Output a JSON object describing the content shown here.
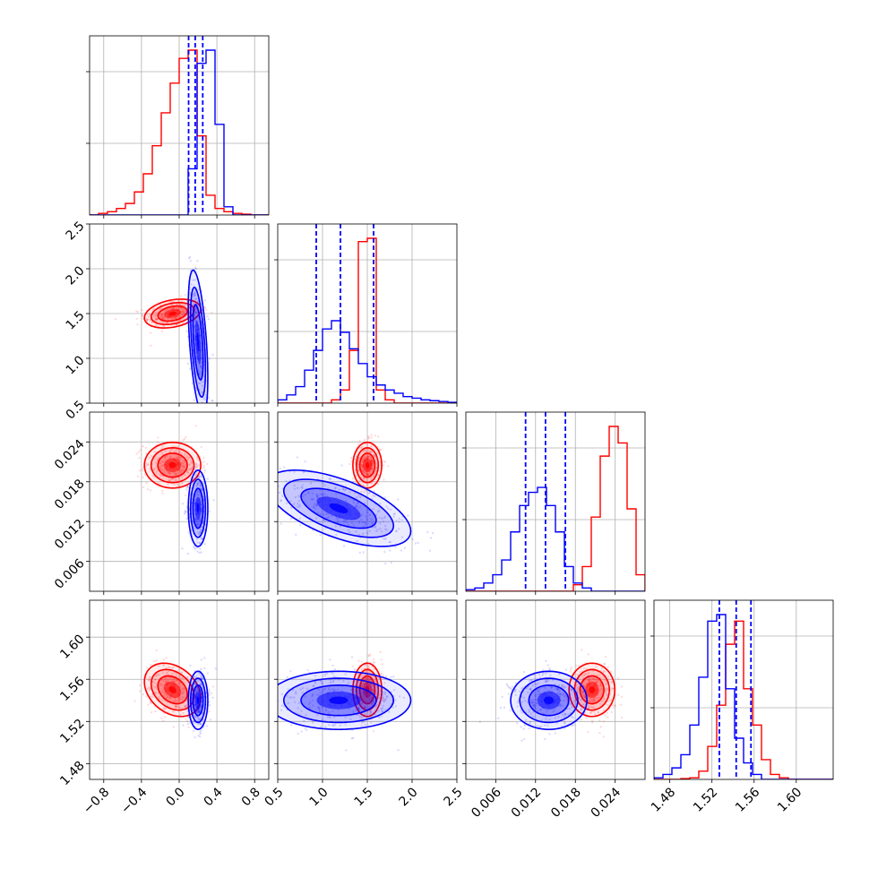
{
  "colors": {
    "red": "#ff0000",
    "blue": "#0000ff",
    "grid": "#b0b0b0",
    "axis": "#000000"
  },
  "chart_data": {
    "type": "corner",
    "grid": true,
    "params": [
      {
        "lim": [
          -0.95,
          0.95
        ],
        "ticks": [
          -0.8,
          -0.4,
          0.0,
          0.4,
          0.8
        ],
        "tick_labels": [
          "−0.8",
          "−0.4",
          "0.0",
          "0.4",
          "0.8"
        ]
      },
      {
        "lim": [
          0.5,
          2.5
        ],
        "ticks": [
          0.5,
          1.0,
          1.5,
          2.0,
          2.5
        ],
        "tick_labels": [
          "0.5",
          "1.0",
          "1.5",
          "2.0",
          "2.5"
        ]
      },
      {
        "lim": [
          0.0015,
          0.0285
        ],
        "ticks": [
          0.006,
          0.012,
          0.018,
          0.024
        ],
        "tick_labels": [
          "0.006",
          "0.012",
          "0.018",
          "0.024"
        ]
      },
      {
        "lim": [
          1.465,
          1.635
        ],
        "ticks": [
          1.48,
          1.52,
          1.56,
          1.6
        ],
        "tick_labels": [
          "1.48",
          "1.52",
          "1.56",
          "1.60"
        ]
      }
    ],
    "series": [
      {
        "color": "red",
        "mean": [
          -0.07,
          1.5,
          0.0205,
          1.55
        ],
        "sd": [
          0.13,
          0.07,
          0.0015,
          0.011
        ],
        "corr": [
          [
            0,
            1,
            0.3
          ],
          [
            0,
            2,
            0.0
          ],
          [
            0,
            3,
            -0.3
          ],
          [
            1,
            2,
            0.0
          ],
          [
            1,
            3,
            0.0
          ],
          [
            2,
            3,
            0.0
          ]
        ]
      },
      {
        "color": "blue",
        "mean": [
          0.2,
          1.18,
          0.014,
          1.54
        ],
        "sd": [
          0.045,
          0.35,
          0.0025,
          0.012
        ],
        "corr": [
          [
            0,
            1,
            -0.5
          ],
          [
            0,
            2,
            0.0
          ],
          [
            0,
            3,
            0.0
          ],
          [
            1,
            2,
            -0.6
          ],
          [
            1,
            3,
            0.0
          ],
          [
            2,
            3,
            0.0
          ]
        ]
      }
    ],
    "histograms": [
      {
        "red": {
          "start": -0.95,
          "end": 0.95,
          "heights": [
            0.0,
            0.01,
            0.02,
            0.04,
            0.07,
            0.14,
            0.25,
            0.42,
            0.62,
            0.8,
            0.95,
            1.0,
            0.48,
            0.12,
            0.04,
            0.02,
            0.01,
            0.005,
            0.0,
            0.0
          ]
        },
        "blue": {
          "start": -0.95,
          "end": 0.95,
          "heights": [
            0,
            0,
            0,
            0,
            0,
            0,
            0,
            0,
            0,
            0,
            0,
            0.28,
            0.92,
            1.0,
            0.55,
            0.05,
            0,
            0,
            0,
            0
          ]
        },
        "quantiles_blue": [
          0.1,
          0.17,
          0.25
        ]
      },
      {
        "red": {
          "start": 0.5,
          "end": 2.5,
          "heights": [
            0,
            0,
            0,
            0,
            0,
            0,
            0.02,
            0.08,
            0.32,
            0.98,
            1.0,
            0.08,
            0.02,
            0,
            0,
            0,
            0,
            0,
            0,
            0
          ]
        },
        "blue": {
          "start": 0.5,
          "end": 2.5,
          "heights": [
            0.02,
            0.05,
            0.1,
            0.2,
            0.32,
            0.45,
            0.5,
            0.43,
            0.33,
            0.24,
            0.16,
            0.11,
            0.08,
            0.06,
            0.04,
            0.03,
            0.02,
            0.015,
            0.01,
            0.005
          ]
        },
        "quantiles_blue": [
          0.93,
          1.2,
          1.57
        ]
      },
      {
        "red": {
          "start": 0.0015,
          "end": 0.0285,
          "heights": [
            0,
            0,
            0,
            0,
            0,
            0,
            0,
            0,
            0,
            0,
            0,
            0,
            0.04,
            0.15,
            0.45,
            0.82,
            1.0,
            0.9,
            0.5,
            0.1
          ]
        },
        "blue": {
          "start": 0.0015,
          "end": 0.0285,
          "heights": [
            0.01,
            0.02,
            0.05,
            0.1,
            0.19,
            0.36,
            0.52,
            0.6,
            0.63,
            0.52,
            0.36,
            0.15,
            0.05,
            0.02,
            0,
            0,
            0,
            0,
            0,
            0
          ]
        },
        "quantiles_blue": [
          0.0105,
          0.0135,
          0.0165
        ]
      },
      {
        "red": {
          "start": 1.465,
          "end": 1.635,
          "heights": [
            0,
            0,
            0,
            0.005,
            0.01,
            0.05,
            0.2,
            0.45,
            0.82,
            0.96,
            0.55,
            0.33,
            0.12,
            0.03,
            0.01,
            0,
            0,
            0,
            0,
            0
          ]
        },
        "blue": {
          "start": 1.465,
          "end": 1.635,
          "heights": [
            0.01,
            0.03,
            0.07,
            0.15,
            0.33,
            0.62,
            0.96,
            1.0,
            0.55,
            0.25,
            0.1,
            0.03,
            0,
            0,
            0,
            0,
            0,
            0,
            0,
            0
          ]
        },
        "quantiles_blue": [
          1.527,
          1.543,
          1.557
        ]
      }
    ]
  }
}
